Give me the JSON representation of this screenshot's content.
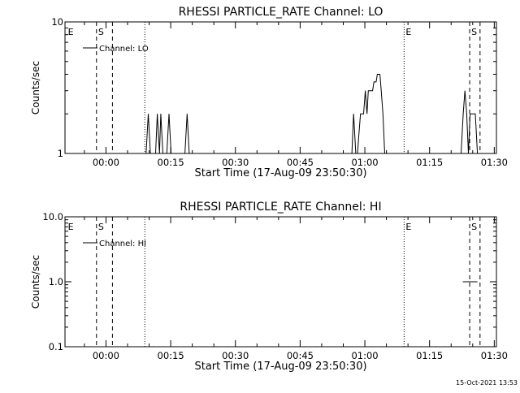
{
  "footer": {
    "timestamp": "15-Oct-2021 13:53"
  },
  "chart_data": [
    {
      "type": "line",
      "title": "RHESSI PARTICLE_RATE Channel: LO",
      "xlabel": "Start Time (17-Aug-09 23:50:30)",
      "ylabel": "Counts/sec",
      "x_unit": "minutes after 23:50:30",
      "xlim": [
        0,
        100
      ],
      "ylim": [
        1,
        10
      ],
      "yscale": "log",
      "x_ticks": [
        {
          "value": 9.5,
          "label": "00:00"
        },
        {
          "value": 24.5,
          "label": "00:15"
        },
        {
          "value": 39.5,
          "label": "00:30"
        },
        {
          "value": 54.5,
          "label": "00:45"
        },
        {
          "value": 69.5,
          "label": "01:00"
        },
        {
          "value": 84.5,
          "label": "01:15"
        },
        {
          "value": 99.5,
          "label": "01:30"
        }
      ],
      "y_ticks": [
        {
          "value": 1,
          "label": "1"
        },
        {
          "value": 10,
          "label": "10"
        }
      ],
      "legend": {
        "placement": "top-left",
        "entries": [
          "Channel: LO"
        ]
      },
      "markers": [
        {
          "x": 7.3,
          "style": "dashed"
        },
        {
          "x": 11.0,
          "style": "dashed"
        },
        {
          "x": 18.5,
          "style": "dotted"
        },
        {
          "x": 78.6,
          "style": "dotted"
        },
        {
          "x": 93.8,
          "style": "dashed"
        },
        {
          "x": 96.2,
          "style": "dashed"
        }
      ],
      "marker_labels": [
        {
          "x": 0.5,
          "text": "E"
        },
        {
          "x": 7.5,
          "text": "S"
        },
        {
          "x": 78.8,
          "text": "E"
        },
        {
          "x": 94.0,
          "text": "S"
        }
      ],
      "series": [
        {
          "points": [
            [
              18.8,
              1
            ],
            [
              19.3,
              2
            ],
            [
              19.8,
              1
            ],
            [
              21.0,
              1
            ],
            [
              21.4,
              2
            ],
            [
              21.9,
              1
            ],
            [
              22.2,
              2
            ],
            [
              22.7,
              1
            ],
            [
              23.6,
              1
            ],
            [
              24.1,
              2
            ],
            [
              24.6,
              1
            ],
            [
              27.8,
              1
            ],
            [
              28.3,
              2
            ],
            [
              28.8,
              1
            ],
            [
              66.5,
              1
            ],
            [
              66.9,
              2
            ],
            [
              67.4,
              1
            ],
            [
              67.8,
              1
            ],
            [
              68.2,
              1.5
            ],
            [
              68.5,
              2
            ],
            [
              69.2,
              2
            ],
            [
              69.6,
              3
            ],
            [
              70.0,
              2
            ],
            [
              70.3,
              3
            ],
            [
              71.3,
              3
            ],
            [
              71.6,
              3.5
            ],
            [
              72.1,
              3.5
            ],
            [
              72.4,
              4
            ],
            [
              73.0,
              4
            ],
            [
              73.3,
              3
            ],
            [
              73.7,
              2
            ],
            [
              74.1,
              1
            ],
            [
              91.8,
              1
            ],
            [
              92.3,
              2
            ],
            [
              92.7,
              3
            ],
            [
              93.1,
              2
            ],
            [
              93.5,
              1
            ],
            [
              93.9,
              2
            ],
            [
              95.1,
              2
            ],
            [
              95.6,
              1
            ]
          ]
        }
      ]
    },
    {
      "type": "line",
      "title": "RHESSI PARTICLE_RATE Channel: HI",
      "xlabel": "Start Time (17-Aug-09 23:50:30)",
      "ylabel": "Counts/sec",
      "x_unit": "minutes after 23:50:30",
      "xlim": [
        0,
        100
      ],
      "ylim": [
        0.1,
        10
      ],
      "yscale": "log",
      "x_ticks": [
        {
          "value": 9.5,
          "label": "00:00"
        },
        {
          "value": 24.5,
          "label": "00:15"
        },
        {
          "value": 39.5,
          "label": "00:30"
        },
        {
          "value": 54.5,
          "label": "00:45"
        },
        {
          "value": 69.5,
          "label": "01:00"
        },
        {
          "value": 84.5,
          "label": "01:15"
        },
        {
          "value": 99.5,
          "label": "01:30"
        }
      ],
      "y_ticks": [
        {
          "value": 0.1,
          "label": "0.1"
        },
        {
          "value": 1,
          "label": "1.0"
        },
        {
          "value": 10,
          "label": "10.0"
        }
      ],
      "legend": {
        "placement": "top-left",
        "entries": [
          "Channel: HI"
        ]
      },
      "markers": [
        {
          "x": 7.3,
          "style": "dashed"
        },
        {
          "x": 11.0,
          "style": "dashed"
        },
        {
          "x": 18.5,
          "style": "dotted"
        },
        {
          "x": 78.6,
          "style": "dotted"
        },
        {
          "x": 93.8,
          "style": "dashed"
        },
        {
          "x": 96.2,
          "style": "dashed"
        }
      ],
      "marker_labels": [
        {
          "x": 0.5,
          "text": "E"
        },
        {
          "x": 7.5,
          "text": "S"
        },
        {
          "x": 78.8,
          "text": "E"
        },
        {
          "x": 94.0,
          "text": "S"
        }
      ],
      "series": [
        {
          "points": [
            [
              92.2,
              1
            ],
            [
              93.3,
              1
            ],
            [
              95.1,
              1
            ],
            [
              95.6,
              1
            ]
          ]
        }
      ]
    }
  ]
}
